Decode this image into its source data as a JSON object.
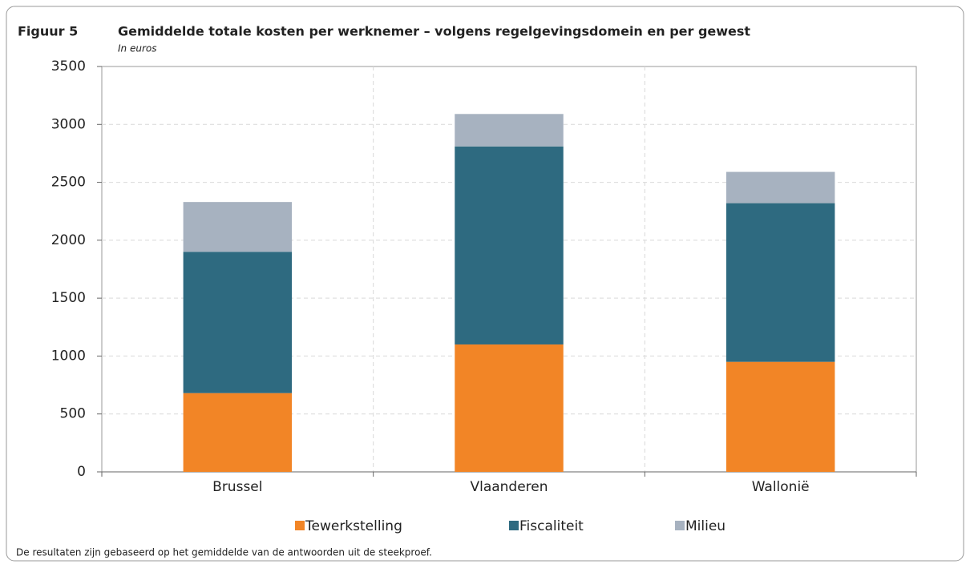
{
  "chart_data": {
    "type": "bar",
    "stacked": true,
    "label": "Figuur 5",
    "title": "Gemiddelde totale kosten per werknemer – volgens regelgevingsdomein en per gewest",
    "subtitle": "In euros",
    "categories": [
      "Brussel",
      "Vlaanderen",
      "Wallonië"
    ],
    "series": [
      {
        "name": "Tewerkstelling",
        "color": "#f28526",
        "values": [
          680,
          1100,
          950
        ]
      },
      {
        "name": "Fiscaliteit",
        "color": "#2e6a80",
        "values": [
          1220,
          1710,
          1370
        ]
      },
      {
        "name": "Milieu",
        "color": "#a7b2c0",
        "values": [
          430,
          280,
          270
        ]
      }
    ],
    "ylim": [
      0,
      3500
    ],
    "yticks": [
      0,
      500,
      1000,
      1500,
      2000,
      2500,
      3000,
      3500
    ],
    "grid": true,
    "legend": "bottom",
    "note": "De resultaten zijn gebaseerd op het gemiddelde van de antwoorden uit de steekproef."
  }
}
